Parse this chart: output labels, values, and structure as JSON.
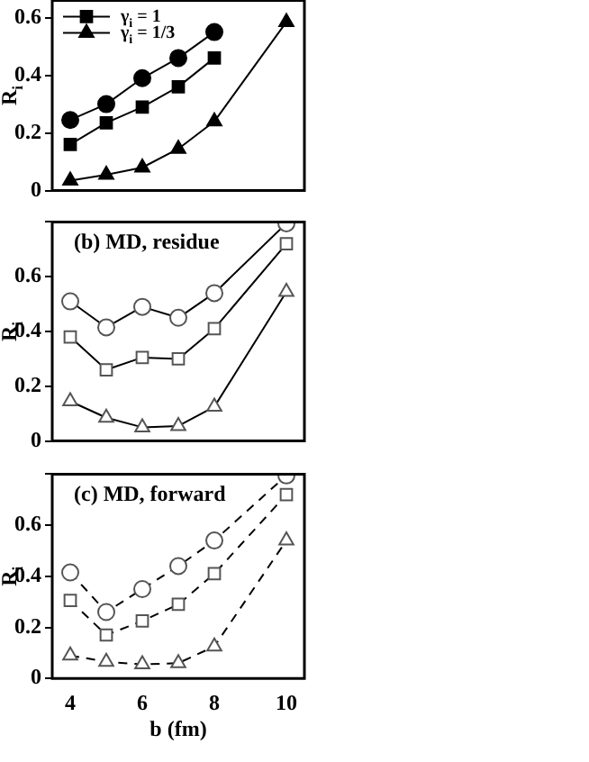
{
  "chart_data": [
    {
      "type": "line",
      "xlim": [
        3.5,
        10.5
      ],
      "xticks": [
        4,
        6,
        8,
        10
      ],
      "ylim": [
        0,
        0.66
      ],
      "yticks": [
        0,
        0.2,
        0.4,
        0.6
      ],
      "ylabel": "R$_{i}$",
      "tick_labels": "y",
      "legend": "top left",
      "line_style": "solid",
      "x": [
        4,
        5,
        6,
        7,
        8,
        10
      ],
      "series": [
        {
          "color": "#000000",
          "marker": "circle",
          "values": [
            0.245,
            0.3,
            0.39,
            0.46,
            0.55,
            null
          ]
        },
        {
          "name": "γ$_{i}$ = 1",
          "color": "#000000",
          "marker": "square",
          "values": [
            0.16,
            0.235,
            0.29,
            0.36,
            0.46,
            null
          ]
        },
        {
          "name": "γ$_{i}$ = 1/3",
          "color": "#000000",
          "marker": "triangle",
          "values": [
            0.035,
            0.055,
            0.08,
            0.145,
            0.24,
            0.585
          ]
        }
      ]
    },
    {
      "type": "line",
      "title": "(b) MD, residue",
      "xlim": [
        3.5,
        10.5
      ],
      "xticks": [
        4,
        6,
        8,
        10
      ],
      "ylim": [
        0,
        0.8
      ],
      "yticks": [
        0,
        0.2,
        0.4,
        0.6,
        {
          "value": 0.8,
          "label": null
        }
      ],
      "ylabel": "R$_{i}$",
      "tick_labels": "y",
      "line_style": "solid",
      "x": [
        4,
        5,
        6,
        7,
        8,
        10
      ],
      "series": [
        {
          "color": "#555555",
          "marker": "circle",
          "values": [
            0.51,
            0.415,
            0.49,
            0.45,
            0.54,
            0.795
          ]
        },
        {
          "color": "#555555",
          "marker": "square",
          "values": [
            0.38,
            0.26,
            0.305,
            0.3,
            0.41,
            0.72
          ]
        },
        {
          "color": "#555555",
          "marker": "triangle",
          "values": [
            0.145,
            0.085,
            0.05,
            0.055,
            0.125,
            0.545
          ]
        }
      ]
    },
    {
      "type": "line",
      "title": "(c) MD, forward",
      "xlim": [
        3.5,
        10.5
      ],
      "xticks": [
        4,
        6,
        8,
        10
      ],
      "ylim": [
        0,
        0.8
      ],
      "yticks": [
        0,
        0.2,
        0.4,
        0.6,
        {
          "value": 0.8,
          "label": null
        }
      ],
      "ylabel": "R$_{i}$",
      "xlabel": "b (fm)",
      "line_style": "dashed",
      "x": [
        4,
        5,
        6,
        7,
        8,
        10
      ],
      "series": [
        {
          "color": "#555555",
          "marker": "circle",
          "values": [
            0.415,
            0.26,
            0.35,
            0.44,
            0.54,
            0.795
          ]
        },
        {
          "color": "#555555",
          "marker": "square",
          "values": [
            0.305,
            0.17,
            0.225,
            0.29,
            0.41,
            0.72
          ]
        },
        {
          "color": "#555555",
          "marker": "triangle",
          "values": [
            0.09,
            0.065,
            0.055,
            0.06,
            0.125,
            0.54
          ]
        }
      ]
    }
  ]
}
